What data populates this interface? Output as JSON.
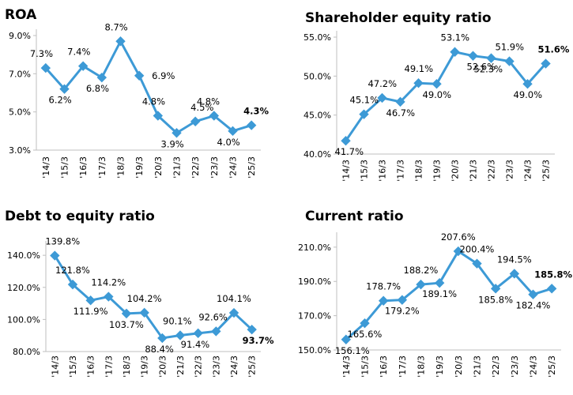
{
  "chart_data": [
    {
      "type": "line",
      "title": "ROA",
      "categories": [
        "'14/3",
        "'15/3",
        "'16/3",
        "'17/3",
        "'18/3",
        "'19/3",
        "'20/3",
        "'21/3",
        "'22/3",
        "'23/3",
        "'24/3",
        "'25/3"
      ],
      "values": [
        7.3,
        6.2,
        7.4,
        6.8,
        8.7,
        6.9,
        4.8,
        3.9,
        4.5,
        4.8,
        4.0,
        4.3
      ],
      "value_labels": [
        "7.3%",
        "6.2%",
        "7.4%",
        "6.8%",
        "8.7%",
        "6.9%",
        "4.8%",
        "3.9%",
        "4.5%",
        "4.8%",
        "4.0%",
        "4.3%"
      ],
      "yticks": [
        "9.0%",
        "7.0%",
        "5.0%",
        "3.0%"
      ],
      "ytick_values": [
        9,
        7,
        5,
        3
      ],
      "ylim": [
        3,
        9
      ],
      "highlight_last": true,
      "color": "#3d9ad6"
    },
    {
      "type": "line",
      "title": "Shareholder equity ratio",
      "categories": [
        "'14/3",
        "'15/3",
        "'16/3",
        "'17/3",
        "'18/3",
        "'19/3",
        "'20/3",
        "'21/3",
        "'22/3",
        "'23/3",
        "'24/3",
        "'25/3"
      ],
      "values": [
        41.7,
        45.1,
        47.2,
        46.7,
        49.1,
        49.0,
        53.1,
        52.6,
        52.3,
        51.9,
        49.0,
        51.6
      ],
      "value_labels": [
        "41.7%",
        "45.1%",
        "47.2%",
        "46.7%",
        "49.1%",
        "49.0%",
        "53.1%",
        "52.6%",
        "52.3%",
        "51.9%",
        "49.0%",
        "51.6%"
      ],
      "yticks": [
        "55.0%",
        "50.0%",
        "45.0%",
        "40.0%"
      ],
      "ytick_values": [
        55,
        50,
        45,
        40
      ],
      "ylim": [
        40,
        55
      ],
      "highlight_last": true,
      "color": "#3d9ad6"
    },
    {
      "type": "line",
      "title": "Debt to equity ratio",
      "categories": [
        "'14/3",
        "'15/3",
        "'16/3",
        "'17/3",
        "'18/3",
        "'19/3",
        "'20/3",
        "'21/3",
        "'22/3",
        "'23/3",
        "'24/3",
        "'25/3"
      ],
      "values": [
        139.8,
        121.8,
        111.9,
        114.2,
        103.7,
        104.2,
        88.4,
        90.1,
        91.4,
        92.6,
        104.1,
        93.7
      ],
      "value_labels": [
        "139.8%",
        "121.8%",
        "111.9%",
        "114.2%",
        "103.7%",
        "104.2%",
        "88.4%",
        "90.1%",
        "91.4%",
        "92.6%",
        "104.1%",
        "93.7%"
      ],
      "yticks": [
        "140.0%",
        "120.0%",
        "100.0%",
        "80.0%"
      ],
      "ytick_values": [
        140,
        120,
        100,
        80
      ],
      "ylim": [
        80,
        145
      ],
      "highlight_last": true,
      "color": "#3d9ad6"
    },
    {
      "type": "line",
      "title": "Current ratio",
      "categories": [
        "'14/3",
        "'15/3",
        "'16/3",
        "'17/3",
        "'18/3",
        "'19/3",
        "'20/3",
        "'21/3",
        "'22/3",
        "'23/3",
        "'24/3",
        "'25/3"
      ],
      "values": [
        156.1,
        165.6,
        178.7,
        179.2,
        188.2,
        189.1,
        207.6,
        200.4,
        185.8,
        194.5,
        182.4,
        185.8
      ],
      "value_labels": [
        "156.1%",
        "165.6%",
        "178.7%",
        "179.2%",
        "188.2%",
        "189.1%",
        "207.6%",
        "200.4%",
        "185.8%",
        "194.5%",
        "182.4%",
        "185.8%"
      ],
      "yticks": [
        "210.0%",
        "190.0%",
        "170.0%",
        "150.0%"
      ],
      "ytick_values": [
        210,
        190,
        170,
        150
      ],
      "ylim": [
        150,
        215
      ],
      "highlight_last": true,
      "color": "#3d9ad6"
    }
  ]
}
